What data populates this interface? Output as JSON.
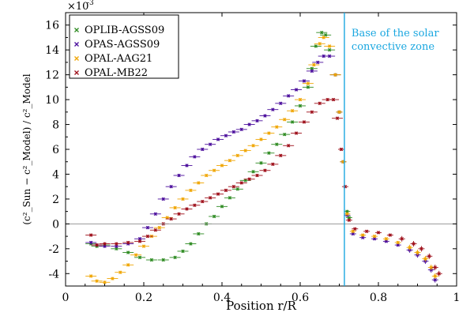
{
  "chart_data": {
    "type": "scatter",
    "title": "",
    "xlabel": "Position r/R",
    "ylabel": "(c²_Sun − c²_Model) / c²_Model",
    "y_multiplier_label": "×10",
    "y_multiplier_exponent": "-3",
    "xlim": [
      0,
      1
    ],
    "ylim": [
      -5,
      17
    ],
    "x_ticks": [
      0,
      0.2,
      0.4,
      0.6,
      0.8,
      1
    ],
    "x_tick_labels": [
      "0",
      "0.2",
      "0.4",
      "0.6",
      "0.8",
      "1"
    ],
    "y_ticks": [
      -4,
      -2,
      0,
      2,
      4,
      6,
      8,
      10,
      12,
      14,
      16
    ],
    "y_tick_labels": [
      "-4",
      "-2",
      "0",
      "2",
      "4",
      "6",
      "8",
      "10",
      "12",
      "14",
      "16"
    ],
    "grid": false,
    "legend_position": "top-left",
    "reference_line_y": 0,
    "annotation": {
      "x": 0.713,
      "line1": "Base of the solar",
      "line2": "convective zone",
      "color": "#1aa7e0"
    },
    "series": [
      {
        "name": "OPLIB-AGSS09",
        "color": "#2e8b22",
        "points": [
          [
            0.065,
            -1.6
          ],
          [
            0.08,
            -1.8
          ],
          [
            0.1,
            -1.7
          ],
          [
            0.13,
            -2.0
          ],
          [
            0.16,
            -2.3
          ],
          [
            0.19,
            -2.7
          ],
          [
            0.22,
            -2.9
          ],
          [
            0.25,
            -2.9
          ],
          [
            0.28,
            -2.7
          ],
          [
            0.3,
            -2.2
          ],
          [
            0.32,
            -1.6
          ],
          [
            0.34,
            -0.8
          ],
          [
            0.36,
            0.0
          ],
          [
            0.38,
            0.6
          ],
          [
            0.4,
            1.4
          ],
          [
            0.42,
            2.1
          ],
          [
            0.44,
            2.8
          ],
          [
            0.46,
            3.5
          ],
          [
            0.48,
            4.2
          ],
          [
            0.5,
            4.9
          ],
          [
            0.52,
            5.7
          ],
          [
            0.54,
            6.4
          ],
          [
            0.56,
            7.2
          ],
          [
            0.58,
            8.2
          ],
          [
            0.6,
            9.5
          ],
          [
            0.62,
            11.0
          ],
          [
            0.63,
            12.5
          ],
          [
            0.64,
            14.3
          ],
          [
            0.655,
            15.4
          ],
          [
            0.665,
            15.2
          ],
          [
            0.675,
            14.0
          ],
          [
            0.69,
            12.0
          ],
          [
            0.7,
            9.0
          ],
          [
            0.71,
            5.0
          ],
          [
            0.72,
            1.0
          ],
          [
            0.725,
            0.5
          ]
        ]
      },
      {
        "name": "OPAS-AGSS09",
        "color": "#4b0e9c",
        "points": [
          [
            0.065,
            -1.5
          ],
          [
            0.08,
            -1.7
          ],
          [
            0.1,
            -1.8
          ],
          [
            0.13,
            -1.8
          ],
          [
            0.16,
            -1.6
          ],
          [
            0.19,
            -1.2
          ],
          [
            0.21,
            -0.3
          ],
          [
            0.23,
            0.8
          ],
          [
            0.25,
            2.0
          ],
          [
            0.27,
            3.0
          ],
          [
            0.29,
            3.9
          ],
          [
            0.31,
            4.7
          ],
          [
            0.33,
            5.4
          ],
          [
            0.35,
            6.0
          ],
          [
            0.37,
            6.4
          ],
          [
            0.39,
            6.8
          ],
          [
            0.41,
            7.1
          ],
          [
            0.43,
            7.4
          ],
          [
            0.45,
            7.6
          ],
          [
            0.47,
            8.0
          ],
          [
            0.49,
            8.3
          ],
          [
            0.51,
            8.7
          ],
          [
            0.53,
            9.2
          ],
          [
            0.55,
            9.7
          ],
          [
            0.57,
            10.3
          ],
          [
            0.59,
            10.8
          ],
          [
            0.61,
            11.5
          ],
          [
            0.63,
            12.3
          ],
          [
            0.645,
            13.0
          ],
          [
            0.66,
            13.5
          ],
          [
            0.675,
            13.5
          ],
          [
            0.69,
            12.0
          ],
          [
            0.7,
            9.0
          ],
          [
            0.71,
            5.0
          ],
          [
            0.72,
            0.7
          ],
          [
            0.735,
            -0.8
          ],
          [
            0.76,
            -1.1
          ],
          [
            0.79,
            -1.2
          ],
          [
            0.82,
            -1.4
          ],
          [
            0.85,
            -1.7
          ],
          [
            0.88,
            -2.1
          ],
          [
            0.9,
            -2.5
          ],
          [
            0.92,
            -3.0
          ],
          [
            0.935,
            -3.7
          ],
          [
            0.945,
            -4.5
          ]
        ]
      },
      {
        "name": "OPAL-AAG21",
        "color": "#f0a500",
        "points": [
          [
            0.065,
            -4.2
          ],
          [
            0.08,
            -4.6
          ],
          [
            0.1,
            -4.7
          ],
          [
            0.12,
            -4.4
          ],
          [
            0.14,
            -3.9
          ],
          [
            0.16,
            -3.3
          ],
          [
            0.18,
            -2.5
          ],
          [
            0.2,
            -1.8
          ],
          [
            0.22,
            -1.0
          ],
          [
            0.24,
            -0.3
          ],
          [
            0.26,
            0.5
          ],
          [
            0.28,
            1.3
          ],
          [
            0.3,
            2.0
          ],
          [
            0.32,
            2.7
          ],
          [
            0.34,
            3.3
          ],
          [
            0.36,
            3.9
          ],
          [
            0.38,
            4.3
          ],
          [
            0.4,
            4.7
          ],
          [
            0.42,
            5.1
          ],
          [
            0.44,
            5.5
          ],
          [
            0.46,
            5.9
          ],
          [
            0.48,
            6.3
          ],
          [
            0.5,
            6.8
          ],
          [
            0.52,
            7.3
          ],
          [
            0.54,
            7.8
          ],
          [
            0.56,
            8.4
          ],
          [
            0.58,
            9.1
          ],
          [
            0.6,
            10.0
          ],
          [
            0.62,
            11.3
          ],
          [
            0.635,
            12.8
          ],
          [
            0.65,
            14.5
          ],
          [
            0.66,
            15.0
          ],
          [
            0.675,
            14.3
          ],
          [
            0.69,
            12.0
          ],
          [
            0.7,
            9.0
          ],
          [
            0.71,
            5.0
          ],
          [
            0.72,
            0.8
          ],
          [
            0.735,
            -0.6
          ],
          [
            0.76,
            -0.9
          ],
          [
            0.79,
            -1.0
          ],
          [
            0.82,
            -1.2
          ],
          [
            0.85,
            -1.5
          ],
          [
            0.88,
            -1.9
          ],
          [
            0.9,
            -2.3
          ],
          [
            0.92,
            -2.8
          ],
          [
            0.935,
            -3.5
          ],
          [
            0.945,
            -4.2
          ]
        ]
      },
      {
        "name": "OPAL-MB22",
        "color": "#9e0f1a",
        "points": [
          [
            0.065,
            -0.9
          ],
          [
            0.08,
            -1.7
          ],
          [
            0.1,
            -1.6
          ],
          [
            0.13,
            -1.6
          ],
          [
            0.16,
            -1.5
          ],
          [
            0.19,
            -1.4
          ],
          [
            0.21,
            -1.0
          ],
          [
            0.23,
            -0.5
          ],
          [
            0.25,
            0.0
          ],
          [
            0.27,
            0.4
          ],
          [
            0.29,
            0.8
          ],
          [
            0.31,
            1.2
          ],
          [
            0.33,
            1.5
          ],
          [
            0.35,
            1.8
          ],
          [
            0.37,
            2.1
          ],
          [
            0.39,
            2.4
          ],
          [
            0.41,
            2.7
          ],
          [
            0.43,
            3.0
          ],
          [
            0.45,
            3.3
          ],
          [
            0.47,
            3.6
          ],
          [
            0.49,
            3.9
          ],
          [
            0.51,
            4.3
          ],
          [
            0.53,
            4.8
          ],
          [
            0.55,
            5.5
          ],
          [
            0.57,
            6.3
          ],
          [
            0.59,
            7.3
          ],
          [
            0.61,
            8.2
          ],
          [
            0.63,
            9.0
          ],
          [
            0.65,
            9.7
          ],
          [
            0.67,
            10.0
          ],
          [
            0.685,
            10.0
          ],
          [
            0.695,
            8.5
          ],
          [
            0.705,
            6.0
          ],
          [
            0.715,
            3.0
          ],
          [
            0.725,
            0.3
          ],
          [
            0.74,
            -0.4
          ],
          [
            0.77,
            -0.6
          ],
          [
            0.8,
            -0.7
          ],
          [
            0.83,
            -0.9
          ],
          [
            0.86,
            -1.2
          ],
          [
            0.89,
            -1.6
          ],
          [
            0.91,
            -2.0
          ],
          [
            0.93,
            -2.6
          ],
          [
            0.945,
            -3.5
          ],
          [
            0.955,
            -4.0
          ]
        ]
      }
    ]
  }
}
